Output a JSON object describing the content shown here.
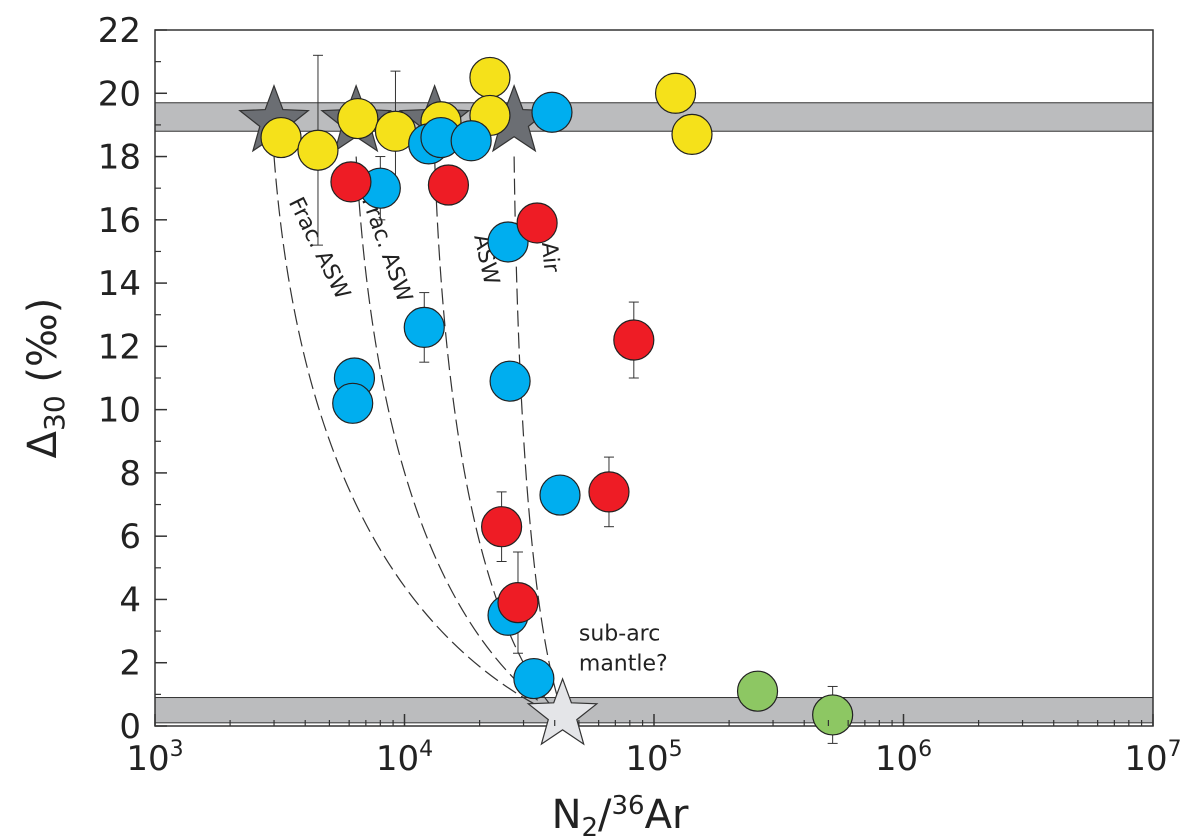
{
  "chart_data": {
    "type": "scatter",
    "xscale": "log",
    "xlim": [
      1000,
      10000000
    ],
    "ylim": [
      0,
      22
    ],
    "grid": false,
    "xlabel": {
      "main": "N",
      "sub": "2",
      "slash": "/",
      "sup": "36",
      "tail": "Ar"
    },
    "ylabel": {
      "main": "Δ",
      "sub": "30",
      "tail": " (‰)"
    },
    "x_tick_labels": [
      {
        "value": 1000,
        "base": "10",
        "exp": "3"
      },
      {
        "value": 10000,
        "base": "10",
        "exp": "4"
      },
      {
        "value": 100000,
        "base": "10",
        "exp": "5"
      },
      {
        "value": 1000000,
        "base": "10",
        "exp": "6"
      },
      {
        "value": 10000000,
        "base": "10",
        "exp": "7"
      }
    ],
    "y_ticks": [
      0,
      2,
      4,
      6,
      8,
      10,
      12,
      14,
      16,
      18,
      20,
      22
    ],
    "y_tick_labels": [
      "0",
      "2",
      "4",
      "6",
      "8",
      "10",
      "12",
      "14",
      "16",
      "18",
      "20",
      "22"
    ],
    "bands": [
      {
        "y0": 18.8,
        "y1": 19.7,
        "color": "#bbbcbe"
      },
      {
        "y0": 0.1,
        "y1": 0.9,
        "color": "#bbbcbe"
      }
    ],
    "colors": {
      "yellow": "#f5e11a",
      "blue": "#00aeef",
      "red": "#ee1c25",
      "green": "#8dc763",
      "star_dark": "#6b6e73",
      "star_light": "#e4e5e8"
    },
    "series": [
      {
        "color_key": "yellow",
        "points": [
          {
            "x": 3200,
            "y": 18.6
          },
          {
            "x": 4500,
            "y": 18.2,
            "err": 3.0
          },
          {
            "x": 6500,
            "y": 19.2
          },
          {
            "x": 9200,
            "y": 18.8,
            "err": 1.9
          },
          {
            "x": 14000,
            "y": 19.1
          },
          {
            "x": 22000,
            "y": 20.5
          },
          {
            "x": 22000,
            "y": 19.3
          },
          {
            "x": 122000,
            "y": 20.0
          },
          {
            "x": 142000,
            "y": 18.7
          }
        ]
      },
      {
        "color_key": "blue",
        "points": [
          {
            "x": 8000,
            "y": 17.0,
            "err": 1.0
          },
          {
            "x": 12500,
            "y": 18.4
          },
          {
            "x": 14000,
            "y": 18.6
          },
          {
            "x": 18500,
            "y": 18.5
          },
          {
            "x": 39000,
            "y": 19.4
          },
          {
            "x": 26000,
            "y": 15.3
          },
          {
            "x": 12000,
            "y": 12.6,
            "err": 1.1
          },
          {
            "x": 6300,
            "y": 11.0
          },
          {
            "x": 6200,
            "y": 10.2
          },
          {
            "x": 26500,
            "y": 10.9
          },
          {
            "x": 42000,
            "y": 7.3
          },
          {
            "x": 26000,
            "y": 3.5
          },
          {
            "x": 33000,
            "y": 1.5
          }
        ]
      },
      {
        "color_key": "red",
        "points": [
          {
            "x": 6100,
            "y": 17.2
          },
          {
            "x": 15000,
            "y": 17.1
          },
          {
            "x": 34000,
            "y": 15.9
          },
          {
            "x": 83000,
            "y": 12.2,
            "err": 1.2
          },
          {
            "x": 66000,
            "y": 7.4,
            "err": 1.1
          },
          {
            "x": 24500,
            "y": 6.3,
            "err": 1.1
          },
          {
            "x": 28500,
            "y": 3.9,
            "err": 1.6
          }
        ]
      },
      {
        "color_key": "green",
        "points": [
          {
            "x": 260000,
            "y": 1.1
          },
          {
            "x": 520000,
            "y": 0.35,
            "err": 0.9
          }
        ]
      }
    ],
    "stars": [
      {
        "x": 3000,
        "y": 19.1,
        "color_key": "star_dark"
      },
      {
        "x": 6400,
        "y": 19.1,
        "color_key": "star_dark"
      },
      {
        "x": 13200,
        "y": 19.1,
        "color_key": "star_dark"
      },
      {
        "x": 27500,
        "y": 19.1,
        "color_key": "star_dark"
      },
      {
        "x": 43000,
        "y": 0.35,
        "color_key": "star_light"
      }
    ],
    "curves": [
      {
        "label": "Frac. ASW",
        "from": [
          3000,
          18.0
        ],
        "to": [
          39000,
          0.4
        ],
        "label_at": [
          4300,
          15.0
        ]
      },
      {
        "label": "Frac. ASW",
        "from": [
          6400,
          18.0
        ],
        "to": [
          40000,
          0.4
        ],
        "label_at": [
          8000,
          15.0
        ]
      },
      {
        "label": "ASW",
        "from": [
          13200,
          18.0
        ],
        "to": [
          41000,
          0.4
        ],
        "label_at": [
          20000,
          14.7
        ]
      },
      {
        "label": "Air",
        "from": [
          27500,
          18.0
        ],
        "to": [
          43000,
          0.4
        ],
        "label_at": [
          36000,
          14.8
        ]
      }
    ],
    "annotation": {
      "line1": "sub-arc",
      "line2": "mantle?",
      "at": [
        50000,
        2.7
      ]
    }
  }
}
